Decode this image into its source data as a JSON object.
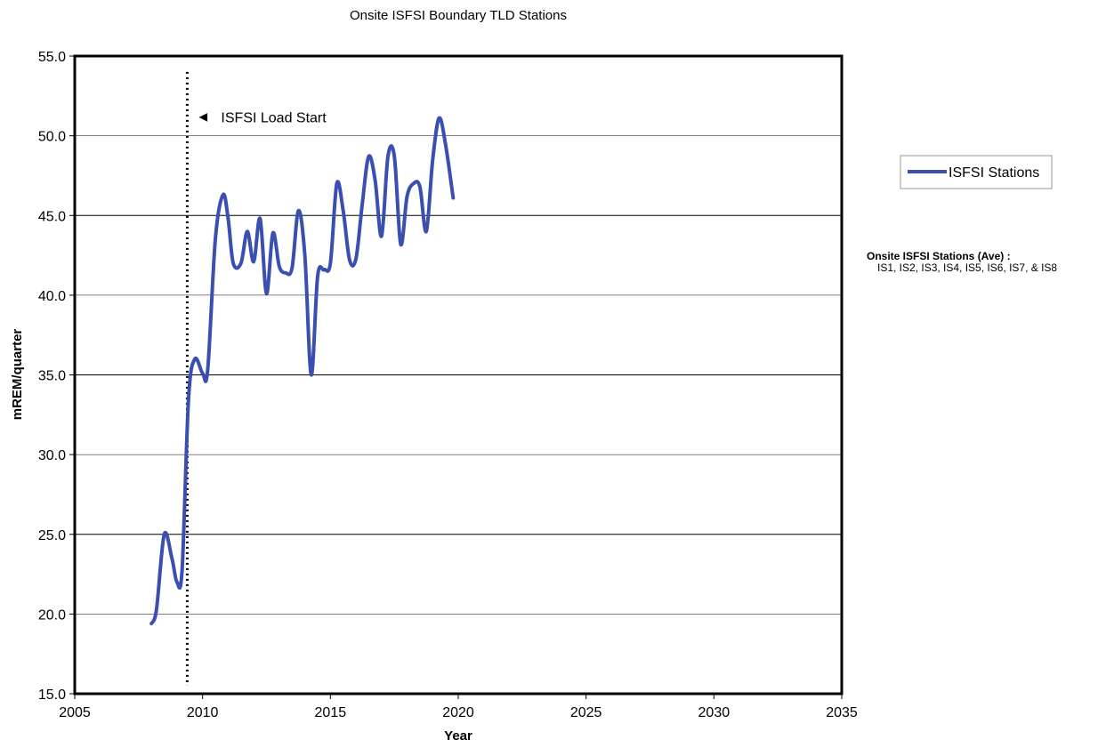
{
  "chart_data": {
    "type": "line",
    "title": "Onsite ISFSI Boundary TLD Stations",
    "xlabel": "Year",
    "ylabel": "mREM/quarter",
    "xlim": [
      2005,
      2035
    ],
    "ylim": [
      15,
      55
    ],
    "x_ticks": [
      "2005",
      "2010",
      "2015",
      "2020",
      "2025",
      "2030",
      "2035"
    ],
    "y_ticks": [
      "15.0",
      "20.0",
      "25.0",
      "30.0",
      "35.0",
      "40.0",
      "45.0",
      "50.0",
      "55.0"
    ],
    "grid": "horizontal",
    "legend_position": "right",
    "series": [
      {
        "name": "ISFSI Stations",
        "color": "#3a4fb0",
        "x": [
          2008.0,
          2008.2,
          2008.5,
          2008.8,
          2009.0,
          2009.2,
          2009.45,
          2009.7,
          2010.0,
          2010.2,
          2010.5,
          2010.8,
          2011.0,
          2011.2,
          2011.5,
          2011.75,
          2012.0,
          2012.25,
          2012.5,
          2012.75,
          2013.0,
          2013.25,
          2013.5,
          2013.75,
          2014.0,
          2014.25,
          2014.5,
          2014.75,
          2015.0,
          2015.25,
          2015.5,
          2015.75,
          2016.0,
          2016.25,
          2016.5,
          2016.75,
          2017.0,
          2017.25,
          2017.5,
          2017.75,
          2018.0,
          2018.25,
          2018.5,
          2018.75,
          2019.0,
          2019.25,
          2019.5,
          2019.8
        ],
        "values": [
          19.4,
          20.3,
          25.0,
          23.5,
          22.0,
          22.8,
          33.5,
          36.0,
          35.1,
          35.3,
          43.5,
          46.3,
          44.8,
          42.0,
          42.0,
          44.0,
          42.1,
          44.8,
          40.1,
          43.9,
          41.8,
          41.4,
          41.7,
          45.3,
          42.5,
          35.0,
          41.2,
          41.6,
          42.0,
          47.0,
          45.3,
          42.2,
          42.3,
          45.8,
          48.7,
          47.2,
          43.7,
          48.7,
          48.7,
          43.2,
          46.2,
          47.0,
          46.8,
          44.0,
          48.5,
          51.1,
          49.5,
          46.1
        ]
      }
    ],
    "annotations": [
      {
        "text": "ISFSI Load Start",
        "marker": "◄",
        "x": 2009.4,
        "y_from": 15.5,
        "y_to": 54.0,
        "style": "dotted-vertical-line"
      }
    ],
    "note": {
      "title": "Onsite ISFSI Stations (Ave) :",
      "body": "IS1, IS2, IS3, IS4, IS5, IS6, IS7, & IS8"
    }
  }
}
